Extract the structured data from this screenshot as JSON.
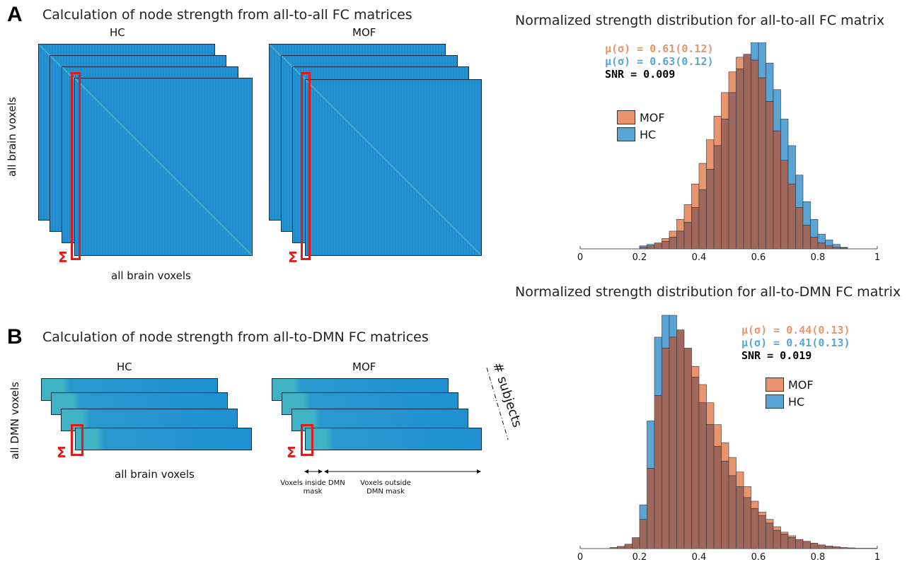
{
  "panelA": {
    "letter": "A",
    "title": "Calculation of node strength from all-to-all FC matrices",
    "hc_label": "HC",
    "mof_label": "MOF",
    "y_label": "all brain voxels",
    "x_label": "all brain voxels",
    "sigma": "Σ"
  },
  "panelB": {
    "letter": "B",
    "title": "Calculation of node strength from all-to-DMN FC matrices",
    "hc_label": "HC",
    "mof_label": "MOF",
    "y_label": "all DMN voxels",
    "x_label": "all brain voxels",
    "subjects_label": "# subjects",
    "inside_label": "Voxels inside DMN mask",
    "outside_label": "Voxels outside DMN mask",
    "sigma": "Σ"
  },
  "colors": {
    "mof": "#e8956f",
    "hc": "#5ba4d6",
    "overlap": "#a0685c",
    "matrix": "#1f8fd0",
    "highlight": "#e01b1b"
  },
  "chart_data": [
    {
      "type": "bar",
      "title": "Normalized strength distribution for all-to-all FC matrix",
      "stats": {
        "mof": "μ(σ) = 0.61(0.12)",
        "hc": "μ(σ) = 0.63(0.12)",
        "snr": "SNR = 0.009"
      },
      "legend": [
        "MOF",
        "HC"
      ],
      "legend_position": "left",
      "xlim": [
        0,
        1
      ],
      "xticks": [
        "0",
        "0.2",
        "0.4",
        "0.6",
        "0.8",
        "1"
      ],
      "bin_start": 0.2,
      "bin_width": 0.025,
      "series": [
        {
          "name": "MOF",
          "values": [
            0.5,
            1,
            2,
            3.5,
            6,
            10,
            15,
            22,
            29,
            37,
            45,
            53,
            60,
            65,
            66,
            64,
            58,
            50,
            40,
            30,
            22,
            14,
            8,
            4,
            2,
            1,
            0.5,
            0.3
          ]
        },
        {
          "name": "HC",
          "values": [
            1,
            1.5,
            2,
            2.5,
            4,
            6,
            9,
            14,
            20,
            27,
            35,
            44,
            53,
            61,
            66,
            70,
            70,
            63,
            54,
            44,
            35,
            25,
            16,
            10,
            5,
            3,
            1.5,
            0.5
          ]
        }
      ]
    },
    {
      "type": "bar",
      "title": "Normalized strength distribution for all-to-DMN FC matrix",
      "stats": {
        "mof": "μ(σ) = 0.44(0.13)",
        "hc": "μ(σ) = 0.41(0.13)",
        "snr": "SNR = 0.019"
      },
      "legend": [
        "MOF",
        "HC"
      ],
      "legend_position": "right",
      "xlim": [
        0,
        1
      ],
      "xticks": [
        "0",
        "0.2",
        "0.4",
        "0.6",
        "0.8",
        "1"
      ],
      "bin_start": 0.1,
      "bin_width": 0.025,
      "series": [
        {
          "name": "MOF",
          "values": [
            0.3,
            0.6,
            1.2,
            3,
            8,
            22,
            42,
            55,
            58,
            60,
            55,
            50,
            45,
            40,
            34,
            29,
            25,
            21,
            17,
            13,
            10,
            8,
            6,
            4.5,
            3.5,
            2.5,
            2,
            1.5,
            1,
            0.7,
            0.5,
            0.3,
            0.2,
            0.1,
            0.1,
            0.1
          ]
        },
        {
          "name": "HC",
          "values": [
            0.3,
            0.6,
            1.2,
            3,
            12,
            35,
            58,
            64,
            64,
            60,
            55,
            47,
            40,
            34,
            28,
            24,
            20,
            17,
            14,
            11,
            9,
            7,
            5,
            4,
            3,
            2.5,
            2,
            1.5,
            1,
            0.7,
            0.5,
            0.3,
            0.2,
            0.1,
            0.1,
            0.1
          ]
        }
      ]
    }
  ]
}
